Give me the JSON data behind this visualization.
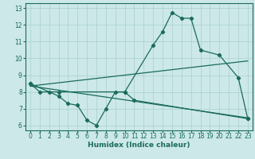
{
  "bg_color": "#cce8e8",
  "grid_color": "#aacfcf",
  "line_color": "#1a6b5a",
  "line1_x": [
    0,
    1,
    2,
    3,
    10,
    13,
    14,
    15,
    16,
    17,
    18,
    20,
    22,
    23
  ],
  "line1_y": [
    8.5,
    8.0,
    8.0,
    8.0,
    8.0,
    10.8,
    11.6,
    12.75,
    12.4,
    12.4,
    10.5,
    10.2,
    8.85,
    6.4
  ],
  "line2_x": [
    0,
    23
  ],
  "line2_y": [
    8.35,
    9.85
  ],
  "line3_x": [
    0,
    23
  ],
  "line3_y": [
    8.35,
    6.45
  ],
  "line4_x": [
    0,
    3,
    4,
    5,
    6,
    7,
    8,
    9,
    10,
    11,
    23
  ],
  "line4_y": [
    8.5,
    7.75,
    7.3,
    7.2,
    6.3,
    6.0,
    7.0,
    8.0,
    8.0,
    7.5,
    6.4
  ],
  "xlim": [
    -0.5,
    23.5
  ],
  "ylim": [
    5.7,
    13.3
  ],
  "xticks": [
    0,
    1,
    2,
    3,
    4,
    5,
    6,
    7,
    8,
    9,
    10,
    11,
    12,
    13,
    14,
    15,
    16,
    17,
    18,
    19,
    20,
    21,
    22,
    23
  ],
  "yticks": [
    6,
    7,
    8,
    9,
    10,
    11,
    12,
    13
  ],
  "xlabel": "Humidex (Indice chaleur)",
  "tick_fontsize": 5.5,
  "xlabel_fontsize": 6.5
}
